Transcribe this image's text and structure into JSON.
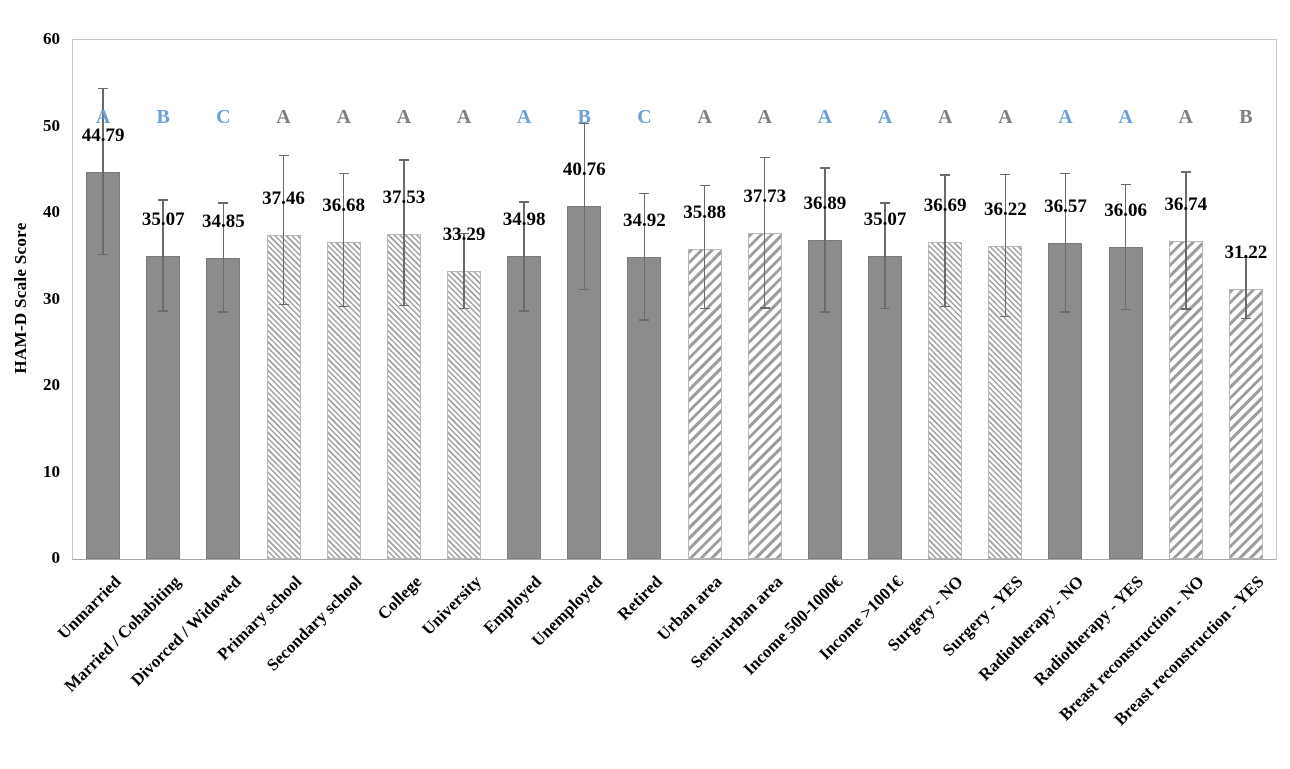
{
  "chart_data": {
    "type": "bar",
    "title": "",
    "xlabel": "",
    "ylabel": "HAM-D Scale Score",
    "ylim": [
      0,
      60
    ],
    "yticks": [
      "0",
      "10",
      "20",
      "30",
      "40",
      "50",
      "60"
    ],
    "grid": false,
    "legend": "none",
    "categories": [
      "Unmarried",
      "Married / Cohabiting",
      "Divorced / Widowed",
      "Primary school",
      "Secondary school",
      "College",
      "University",
      "Employed",
      "Unemployed",
      "Retired",
      "Urban area",
      "Semi-urban area",
      "Income 500-1000€",
      "Income >1001€",
      "Surgery - NO",
      "Surgery - YES",
      "Radiotherapy - NO",
      "Radiotherapy - YES",
      "Breast reconstruction - NO",
      "Breast reconstruction - YES"
    ],
    "values": [
      44.79,
      35.07,
      34.85,
      37.46,
      36.68,
      37.53,
      33.29,
      34.98,
      40.76,
      34.92,
      35.88,
      37.73,
      36.89,
      35.07,
      36.69,
      36.22,
      36.57,
      36.06,
      36.74,
      31.22
    ],
    "value_labels": [
      "44.79",
      "35.07",
      "34.85",
      "37.46",
      "36.68",
      "37.53",
      "33.29",
      "34.98",
      "40.76",
      "34.92",
      "35.88",
      "37.73",
      "36.89",
      "35.07",
      "36.69",
      "36.22",
      "36.57",
      "36.06",
      "36.74",
      "31.22"
    ],
    "errors_plus": [
      9.7,
      6.5,
      6.4,
      9.3,
      8.0,
      8.7,
      4.4,
      6.4,
      9.7,
      7.4,
      7.4,
      8.8,
      8.4,
      6.2,
      7.8,
      8.3,
      8.1,
      7.3,
      8.1,
      3.7
    ],
    "errors_minus": [
      9.7,
      6.5,
      6.4,
      8.1,
      7.6,
      8.3,
      4.4,
      6.4,
      9.7,
      7.4,
      7.0,
      8.8,
      8.4,
      6.2,
      7.6,
      8.3,
      8.1,
      7.3,
      7.9,
      3.5
    ],
    "sig_letters": [
      "A",
      "B",
      "C",
      "A",
      "A",
      "A",
      "A",
      "A",
      "B",
      "C",
      "A",
      "A",
      "A",
      "A",
      "A",
      "A",
      "A",
      "A",
      "A",
      "B"
    ],
    "sig_letter_colors": [
      "blue",
      "blue",
      "blue",
      "gray",
      "gray",
      "gray",
      "gray",
      "blue",
      "blue",
      "blue",
      "gray",
      "gray",
      "blue",
      "blue",
      "gray",
      "gray",
      "blue",
      "blue",
      "gray",
      "gray"
    ],
    "bar_styles": [
      "solid",
      "solid",
      "solid",
      "hatch-backslash",
      "hatch-backslash",
      "hatch-backslash",
      "hatch-backslash",
      "solid",
      "solid",
      "solid",
      "hatch-forward",
      "hatch-forward",
      "solid",
      "solid",
      "hatch-backslash",
      "hatch-backslash",
      "solid",
      "solid",
      "hatch-forward",
      "hatch-forward"
    ],
    "colors": {
      "bar_fill": "#8c8c8c",
      "bar_border": "#7a7a7a",
      "hatch_line": "#9d9d9d",
      "error_bar": "#6a6a6a",
      "letter_blue": "#6e9fd6",
      "letter_gray": "#7f7f7f",
      "plot_border": "#c6c6c6",
      "label_text": "#000000"
    }
  }
}
